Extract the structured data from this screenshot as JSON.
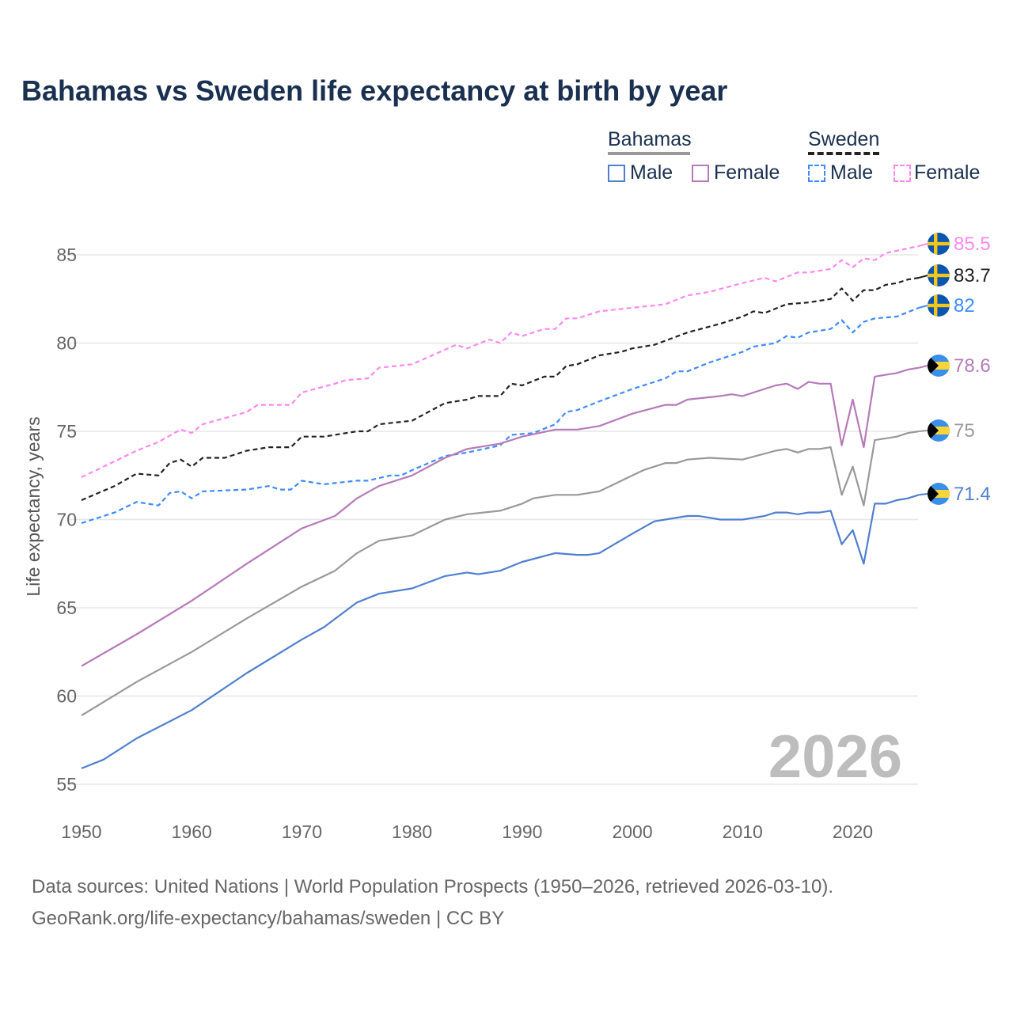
{
  "title": "Bahamas vs Sweden life expectancy at birth by year",
  "legend": {
    "groups": [
      {
        "name": "Bahamas",
        "color": "#999999",
        "dash": false,
        "items": [
          {
            "label": "Male",
            "color": "#4f7fcf"
          },
          {
            "label": "Female",
            "color": "#b67ab8"
          }
        ]
      },
      {
        "name": "Sweden",
        "color": "#222222",
        "dash": true,
        "items": [
          {
            "label": "Male",
            "color": "#3d8bff"
          },
          {
            "label": "Female",
            "color": "#ff88f0"
          }
        ]
      }
    ]
  },
  "year_watermark": "2026",
  "footer": {
    "line1": "Data sources: United Nations | World Population Prospects (1950–2026, retrieved 2026-03-10).",
    "line2": "GeoRank.org/life-expectancy/bahamas/sweden | CC BY"
  },
  "chart_data": {
    "type": "line",
    "title": "Bahamas vs Sweden life expectancy at birth by year",
    "xlabel": "",
    "ylabel": "Life expectancy, years",
    "xlim": [
      1950,
      2026
    ],
    "ylim": [
      55,
      86
    ],
    "xticks": [
      1950,
      1960,
      1970,
      1980,
      1990,
      2000,
      2010,
      2020
    ],
    "yticks": [
      55,
      60,
      65,
      70,
      75,
      80,
      85
    ],
    "grid": true,
    "series": [
      {
        "name": "Sweden Female",
        "country": "sweden",
        "color": "#ff88f0",
        "dash": true,
        "end_label": "85.5",
        "points": [
          [
            1950,
            72.4
          ],
          [
            1953,
            73.3
          ],
          [
            1955,
            73.9
          ],
          [
            1957,
            74.4
          ],
          [
            1959,
            75.1
          ],
          [
            1960,
            74.9
          ],
          [
            1961,
            75.4
          ],
          [
            1965,
            76.1
          ],
          [
            1966,
            76.5
          ],
          [
            1969,
            76.5
          ],
          [
            1970,
            77.2
          ],
          [
            1973,
            77.7
          ],
          [
            1974,
            77.9
          ],
          [
            1976,
            78.0
          ],
          [
            1977,
            78.6
          ],
          [
            1980,
            78.8
          ],
          [
            1984,
            79.9
          ],
          [
            1985,
            79.7
          ],
          [
            1987,
            80.2
          ],
          [
            1988,
            80.0
          ],
          [
            1989,
            80.6
          ],
          [
            1990,
            80.4
          ],
          [
            1992,
            80.8
          ],
          [
            1993,
            80.8
          ],
          [
            1994,
            81.4
          ],
          [
            1995,
            81.4
          ],
          [
            1997,
            81.8
          ],
          [
            2000,
            82.0
          ],
          [
            2003,
            82.2
          ],
          [
            2005,
            82.7
          ],
          [
            2007,
            82.9
          ],
          [
            2010,
            83.4
          ],
          [
            2012,
            83.7
          ],
          [
            2013,
            83.5
          ],
          [
            2015,
            84.0
          ],
          [
            2016,
            84.0
          ],
          [
            2018,
            84.2
          ],
          [
            2019,
            84.7
          ],
          [
            2020,
            84.3
          ],
          [
            2021,
            84.8
          ],
          [
            2022,
            84.7
          ],
          [
            2023,
            85.1
          ],
          [
            2026,
            85.5
          ]
        ]
      },
      {
        "name": "Sweden",
        "country": "sweden",
        "color": "#222222",
        "dash": true,
        "end_label": "83.7",
        "points": [
          [
            1950,
            71.1
          ],
          [
            1953,
            71.9
          ],
          [
            1955,
            72.6
          ],
          [
            1957,
            72.5
          ],
          [
            1958,
            73.2
          ],
          [
            1959,
            73.4
          ],
          [
            1960,
            73.0
          ],
          [
            1961,
            73.5
          ],
          [
            1963,
            73.5
          ],
          [
            1965,
            73.9
          ],
          [
            1967,
            74.1
          ],
          [
            1969,
            74.1
          ],
          [
            1970,
            74.7
          ],
          [
            1972,
            74.7
          ],
          [
            1975,
            75.0
          ],
          [
            1976,
            75.0
          ],
          [
            1977,
            75.4
          ],
          [
            1980,
            75.6
          ],
          [
            1983,
            76.6
          ],
          [
            1985,
            76.8
          ],
          [
            1986,
            77.0
          ],
          [
            1988,
            77.0
          ],
          [
            1989,
            77.7
          ],
          [
            1990,
            77.6
          ],
          [
            1992,
            78.1
          ],
          [
            1993,
            78.1
          ],
          [
            1994,
            78.7
          ],
          [
            1995,
            78.8
          ],
          [
            1997,
            79.3
          ],
          [
            1999,
            79.5
          ],
          [
            2000,
            79.7
          ],
          [
            2002,
            79.9
          ],
          [
            2005,
            80.6
          ],
          [
            2008,
            81.1
          ],
          [
            2010,
            81.5
          ],
          [
            2011,
            81.8
          ],
          [
            2012,
            81.7
          ],
          [
            2014,
            82.2
          ],
          [
            2016,
            82.3
          ],
          [
            2018,
            82.5
          ],
          [
            2019,
            83.1
          ],
          [
            2020,
            82.4
          ],
          [
            2021,
            83.0
          ],
          [
            2022,
            83.0
          ],
          [
            2023,
            83.3
          ],
          [
            2024,
            83.4
          ],
          [
            2025,
            83.6
          ],
          [
            2026,
            83.7
          ]
        ]
      },
      {
        "name": "Sweden Male",
        "country": "sweden",
        "color": "#3d8bff",
        "dash": true,
        "end_label": "82",
        "points": [
          [
            1950,
            69.8
          ],
          [
            1953,
            70.4
          ],
          [
            1955,
            71.0
          ],
          [
            1957,
            70.8
          ],
          [
            1958,
            71.5
          ],
          [
            1959,
            71.6
          ],
          [
            1960,
            71.2
          ],
          [
            1961,
            71.6
          ],
          [
            1965,
            71.7
          ],
          [
            1967,
            71.9
          ],
          [
            1968,
            71.7
          ],
          [
            1969,
            71.7
          ],
          [
            1970,
            72.2
          ],
          [
            1972,
            72.0
          ],
          [
            1975,
            72.2
          ],
          [
            1976,
            72.2
          ],
          [
            1978,
            72.5
          ],
          [
            1979,
            72.5
          ],
          [
            1980,
            72.8
          ],
          [
            1983,
            73.6
          ],
          [
            1985,
            73.8
          ],
          [
            1988,
            74.2
          ],
          [
            1989,
            74.8
          ],
          [
            1991,
            74.9
          ],
          [
            1993,
            75.4
          ],
          [
            1994,
            76.1
          ],
          [
            1995,
            76.2
          ],
          [
            1997,
            76.7
          ],
          [
            2000,
            77.4
          ],
          [
            2003,
            78.0
          ],
          [
            2004,
            78.4
          ],
          [
            2005,
            78.4
          ],
          [
            2007,
            78.9
          ],
          [
            2010,
            79.5
          ],
          [
            2011,
            79.8
          ],
          [
            2013,
            80.0
          ],
          [
            2014,
            80.4
          ],
          [
            2015,
            80.3
          ],
          [
            2016,
            80.6
          ],
          [
            2018,
            80.8
          ],
          [
            2019,
            81.3
          ],
          [
            2020,
            80.6
          ],
          [
            2021,
            81.2
          ],
          [
            2022,
            81.4
          ],
          [
            2024,
            81.5
          ],
          [
            2026,
            82.0
          ]
        ]
      },
      {
        "name": "Bahamas Female",
        "country": "bahamas",
        "color": "#b67ab8",
        "dash": false,
        "end_label": "78.6",
        "points": [
          [
            1950,
            61.7
          ],
          [
            1955,
            63.5
          ],
          [
            1960,
            65.4
          ],
          [
            1965,
            67.5
          ],
          [
            1970,
            69.5
          ],
          [
            1973,
            70.2
          ],
          [
            1975,
            71.2
          ],
          [
            1977,
            71.9
          ],
          [
            1980,
            72.5
          ],
          [
            1983,
            73.5
          ],
          [
            1985,
            74.0
          ],
          [
            1988,
            74.3
          ],
          [
            1990,
            74.7
          ],
          [
            1993,
            75.1
          ],
          [
            1995,
            75.1
          ],
          [
            1997,
            75.3
          ],
          [
            2000,
            76.0
          ],
          [
            2003,
            76.5
          ],
          [
            2004,
            76.5
          ],
          [
            2005,
            76.8
          ],
          [
            2008,
            77.0
          ],
          [
            2009,
            77.1
          ],
          [
            2010,
            77.0
          ],
          [
            2013,
            77.6
          ],
          [
            2014,
            77.7
          ],
          [
            2015,
            77.4
          ],
          [
            2016,
            77.8
          ],
          [
            2017,
            77.7
          ],
          [
            2018,
            77.7
          ],
          [
            2019,
            74.2
          ],
          [
            2020,
            76.8
          ],
          [
            2021,
            74.1
          ],
          [
            2022,
            78.1
          ],
          [
            2023,
            78.2
          ],
          [
            2024,
            78.3
          ],
          [
            2025,
            78.5
          ],
          [
            2026,
            78.6
          ]
        ]
      },
      {
        "name": "Bahamas",
        "country": "bahamas",
        "color": "#999999",
        "dash": false,
        "end_label": "75",
        "points": [
          [
            1950,
            58.9
          ],
          [
            1955,
            60.8
          ],
          [
            1960,
            62.5
          ],
          [
            1965,
            64.4
          ],
          [
            1970,
            66.2
          ],
          [
            1973,
            67.1
          ],
          [
            1975,
            68.1
          ],
          [
            1977,
            68.8
          ],
          [
            1980,
            69.1
          ],
          [
            1983,
            70.0
          ],
          [
            1985,
            70.3
          ],
          [
            1988,
            70.5
          ],
          [
            1990,
            70.9
          ],
          [
            1991,
            71.2
          ],
          [
            1993,
            71.4
          ],
          [
            1995,
            71.4
          ],
          [
            1997,
            71.6
          ],
          [
            2000,
            72.5
          ],
          [
            2001,
            72.8
          ],
          [
            2003,
            73.2
          ],
          [
            2004,
            73.2
          ],
          [
            2005,
            73.4
          ],
          [
            2007,
            73.5
          ],
          [
            2010,
            73.4
          ],
          [
            2013,
            73.9
          ],
          [
            2014,
            74.0
          ],
          [
            2015,
            73.8
          ],
          [
            2016,
            74.0
          ],
          [
            2017,
            74.0
          ],
          [
            2018,
            74.1
          ],
          [
            2019,
            71.4
          ],
          [
            2020,
            73.0
          ],
          [
            2021,
            70.8
          ],
          [
            2022,
            74.5
          ],
          [
            2023,
            74.6
          ],
          [
            2024,
            74.7
          ],
          [
            2025,
            74.9
          ],
          [
            2026,
            75.0
          ]
        ]
      },
      {
        "name": "Bahamas Male",
        "country": "bahamas",
        "color": "#4f7fcf",
        "dash": false,
        "end_label": "71.4",
        "points": [
          [
            1950,
            55.9
          ],
          [
            1952,
            56.4
          ],
          [
            1955,
            57.6
          ],
          [
            1960,
            59.2
          ],
          [
            1965,
            61.3
          ],
          [
            1970,
            63.2
          ],
          [
            1972,
            63.9
          ],
          [
            1975,
            65.3
          ],
          [
            1977,
            65.8
          ],
          [
            1980,
            66.1
          ],
          [
            1983,
            66.8
          ],
          [
            1985,
            67.0
          ],
          [
            1986,
            66.9
          ],
          [
            1988,
            67.1
          ],
          [
            1990,
            67.6
          ],
          [
            1993,
            68.1
          ],
          [
            1995,
            68.0
          ],
          [
            1996,
            68.0
          ],
          [
            1997,
            68.1
          ],
          [
            2000,
            69.2
          ],
          [
            2002,
            69.9
          ],
          [
            2005,
            70.2
          ],
          [
            2006,
            70.2
          ],
          [
            2008,
            70.0
          ],
          [
            2010,
            70.0
          ],
          [
            2012,
            70.2
          ],
          [
            2013,
            70.4
          ],
          [
            2014,
            70.4
          ],
          [
            2015,
            70.3
          ],
          [
            2016,
            70.4
          ],
          [
            2017,
            70.4
          ],
          [
            2018,
            70.5
          ],
          [
            2019,
            68.6
          ],
          [
            2020,
            69.4
          ],
          [
            2021,
            67.5
          ],
          [
            2022,
            70.9
          ],
          [
            2023,
            70.9
          ],
          [
            2024,
            71.1
          ],
          [
            2025,
            71.2
          ],
          [
            2026,
            71.4
          ]
        ]
      }
    ]
  }
}
